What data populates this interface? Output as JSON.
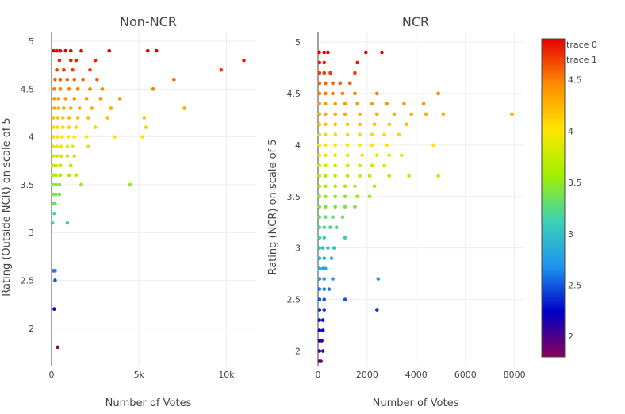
{
  "chart_data": [
    {
      "type": "scatter",
      "title": "Non-NCR",
      "xlabel": "Number of Votes",
      "ylabel": "Rating (Outside NCR) on scale of 5",
      "xlim": [
        0,
        11700
      ],
      "ylim": [
        1.6,
        5.1
      ],
      "xticks": [
        0,
        5000,
        10000
      ],
      "xtick_labels": [
        "0",
        "5k",
        "10k"
      ],
      "yticks": [
        2,
        2.5,
        3,
        3.5,
        4,
        4.5,
        5
      ],
      "ytick_labels": [
        "2",
        "2.5",
        "3",
        "3.5",
        "4",
        "4.5",
        "5"
      ],
      "grid": true,
      "points": [
        {
          "x": 120,
          "y": 4.9
        },
        {
          "x": 300,
          "y": 4.9
        },
        {
          "x": 500,
          "y": 4.9
        },
        {
          "x": 800,
          "y": 4.9
        },
        {
          "x": 1100,
          "y": 4.9
        },
        {
          "x": 1700,
          "y": 4.9
        },
        {
          "x": 3300,
          "y": 4.9
        },
        {
          "x": 5500,
          "y": 4.9
        },
        {
          "x": 6000,
          "y": 4.9
        },
        {
          "x": 450,
          "y": 4.8
        },
        {
          "x": 1100,
          "y": 4.8
        },
        {
          "x": 1400,
          "y": 4.8
        },
        {
          "x": 2500,
          "y": 4.8
        },
        {
          "x": 11000,
          "y": 4.8
        },
        {
          "x": 300,
          "y": 4.7
        },
        {
          "x": 700,
          "y": 4.7
        },
        {
          "x": 1200,
          "y": 4.7
        },
        {
          "x": 2200,
          "y": 4.7
        },
        {
          "x": 9700,
          "y": 4.7
        },
        {
          "x": 200,
          "y": 4.6
        },
        {
          "x": 500,
          "y": 4.6
        },
        {
          "x": 900,
          "y": 4.6
        },
        {
          "x": 1300,
          "y": 4.6
        },
        {
          "x": 1800,
          "y": 4.6
        },
        {
          "x": 2600,
          "y": 4.6
        },
        {
          "x": 7000,
          "y": 4.6
        },
        {
          "x": 150,
          "y": 4.5
        },
        {
          "x": 500,
          "y": 4.5
        },
        {
          "x": 1000,
          "y": 4.5
        },
        {
          "x": 1500,
          "y": 4.5
        },
        {
          "x": 2200,
          "y": 4.5
        },
        {
          "x": 2900,
          "y": 4.5
        },
        {
          "x": 5800,
          "y": 4.5
        },
        {
          "x": 150,
          "y": 4.4
        },
        {
          "x": 400,
          "y": 4.4
        },
        {
          "x": 800,
          "y": 4.4
        },
        {
          "x": 1300,
          "y": 4.4
        },
        {
          "x": 2000,
          "y": 4.4
        },
        {
          "x": 2800,
          "y": 4.4
        },
        {
          "x": 3900,
          "y": 4.4
        },
        {
          "x": 150,
          "y": 4.3
        },
        {
          "x": 400,
          "y": 4.3
        },
        {
          "x": 700,
          "y": 4.3
        },
        {
          "x": 1100,
          "y": 4.3
        },
        {
          "x": 1600,
          "y": 4.3
        },
        {
          "x": 2300,
          "y": 4.3
        },
        {
          "x": 3400,
          "y": 4.3
        },
        {
          "x": 7600,
          "y": 4.3
        },
        {
          "x": 100,
          "y": 4.2
        },
        {
          "x": 350,
          "y": 4.2
        },
        {
          "x": 650,
          "y": 4.2
        },
        {
          "x": 1000,
          "y": 4.2
        },
        {
          "x": 1500,
          "y": 4.2
        },
        {
          "x": 2100,
          "y": 4.2
        },
        {
          "x": 3200,
          "y": 4.2
        },
        {
          "x": 5300,
          "y": 4.2
        },
        {
          "x": 100,
          "y": 4.1
        },
        {
          "x": 350,
          "y": 4.1
        },
        {
          "x": 650,
          "y": 4.1
        },
        {
          "x": 1000,
          "y": 4.1
        },
        {
          "x": 1400,
          "y": 4.1
        },
        {
          "x": 2500,
          "y": 4.1
        },
        {
          "x": 5400,
          "y": 4.1
        },
        {
          "x": 100,
          "y": 4.0
        },
        {
          "x": 350,
          "y": 4.0
        },
        {
          "x": 600,
          "y": 4.0
        },
        {
          "x": 950,
          "y": 4.0
        },
        {
          "x": 1300,
          "y": 4.0
        },
        {
          "x": 2000,
          "y": 4.0
        },
        {
          "x": 3600,
          "y": 4.0
        },
        {
          "x": 5200,
          "y": 4.0
        },
        {
          "x": 100,
          "y": 3.9
        },
        {
          "x": 300,
          "y": 3.9
        },
        {
          "x": 550,
          "y": 3.9
        },
        {
          "x": 900,
          "y": 3.9
        },
        {
          "x": 1200,
          "y": 3.9
        },
        {
          "x": 2100,
          "y": 3.9
        },
        {
          "x": 100,
          "y": 3.8
        },
        {
          "x": 300,
          "y": 3.8
        },
        {
          "x": 550,
          "y": 3.8
        },
        {
          "x": 900,
          "y": 3.8
        },
        {
          "x": 1300,
          "y": 3.8
        },
        {
          "x": 80,
          "y": 3.7
        },
        {
          "x": 250,
          "y": 3.7
        },
        {
          "x": 500,
          "y": 3.7
        },
        {
          "x": 1100,
          "y": 3.7
        },
        {
          "x": 80,
          "y": 3.6
        },
        {
          "x": 250,
          "y": 3.6
        },
        {
          "x": 500,
          "y": 3.6
        },
        {
          "x": 1000,
          "y": 3.6
        },
        {
          "x": 1400,
          "y": 3.6
        },
        {
          "x": 80,
          "y": 3.5
        },
        {
          "x": 250,
          "y": 3.5
        },
        {
          "x": 450,
          "y": 3.5
        },
        {
          "x": 1700,
          "y": 3.5
        },
        {
          "x": 4500,
          "y": 3.5
        },
        {
          "x": 80,
          "y": 3.4
        },
        {
          "x": 250,
          "y": 3.4
        },
        {
          "x": 450,
          "y": 3.4
        },
        {
          "x": 100,
          "y": 3.3
        },
        {
          "x": 200,
          "y": 3.3
        },
        {
          "x": 150,
          "y": 3.2
        },
        {
          "x": 50,
          "y": 3.1
        },
        {
          "x": 900,
          "y": 3.1
        },
        {
          "x": 100,
          "y": 2.6
        },
        {
          "x": 200,
          "y": 2.6
        },
        {
          "x": 200,
          "y": 2.5
        },
        {
          "x": 150,
          "y": 2.2
        },
        {
          "x": 350,
          "y": 1.8
        }
      ]
    },
    {
      "type": "scatter",
      "title": "NCR",
      "xlabel": "Number of Votes",
      "ylabel": "Rating (NCR) on scale of 5",
      "xlim": [
        0,
        8400
      ],
      "ylim": [
        1.85,
        5.1
      ],
      "xticks": [
        0,
        2000,
        4000,
        6000,
        8000
      ],
      "xtick_labels": [
        "0",
        "2000",
        "4000",
        "6000",
        "8000"
      ],
      "yticks": [
        2,
        2.5,
        3,
        3.5,
        4,
        4.5,
        5
      ],
      "ytick_labels": [
        "2",
        "2.5",
        "3",
        "3.5",
        "4",
        "4.5",
        "5"
      ],
      "grid": true,
      "points": [
        {
          "x": 50,
          "y": 4.9
        },
        {
          "x": 250,
          "y": 4.9
        },
        {
          "x": 400,
          "y": 4.9
        },
        {
          "x": 1950,
          "y": 4.9
        },
        {
          "x": 2600,
          "y": 4.9
        },
        {
          "x": 60,
          "y": 4.8
        },
        {
          "x": 250,
          "y": 4.8
        },
        {
          "x": 1600,
          "y": 4.8
        },
        {
          "x": 60,
          "y": 4.7
        },
        {
          "x": 250,
          "y": 4.7
        },
        {
          "x": 500,
          "y": 4.7
        },
        {
          "x": 1500,
          "y": 4.7
        },
        {
          "x": 60,
          "y": 4.6
        },
        {
          "x": 300,
          "y": 4.6
        },
        {
          "x": 600,
          "y": 4.6
        },
        {
          "x": 900,
          "y": 4.6
        },
        {
          "x": 1300,
          "y": 4.6
        },
        {
          "x": 60,
          "y": 4.5
        },
        {
          "x": 300,
          "y": 4.5
        },
        {
          "x": 600,
          "y": 4.5
        },
        {
          "x": 1000,
          "y": 4.5
        },
        {
          "x": 1500,
          "y": 4.5
        },
        {
          "x": 2400,
          "y": 4.5
        },
        {
          "x": 4900,
          "y": 4.5
        },
        {
          "x": 60,
          "y": 4.4
        },
        {
          "x": 300,
          "y": 4.4
        },
        {
          "x": 700,
          "y": 4.4
        },
        {
          "x": 1100,
          "y": 4.4
        },
        {
          "x": 1600,
          "y": 4.4
        },
        {
          "x": 2200,
          "y": 4.4
        },
        {
          "x": 2800,
          "y": 4.4
        },
        {
          "x": 3500,
          "y": 4.4
        },
        {
          "x": 4300,
          "y": 4.4
        },
        {
          "x": 60,
          "y": 4.3
        },
        {
          "x": 300,
          "y": 4.3
        },
        {
          "x": 700,
          "y": 4.3
        },
        {
          "x": 1100,
          "y": 4.3
        },
        {
          "x": 1700,
          "y": 4.3
        },
        {
          "x": 2400,
          "y": 4.3
        },
        {
          "x": 3100,
          "y": 4.3
        },
        {
          "x": 3800,
          "y": 4.3
        },
        {
          "x": 4400,
          "y": 4.3
        },
        {
          "x": 5100,
          "y": 4.3
        },
        {
          "x": 7900,
          "y": 4.3
        },
        {
          "x": 60,
          "y": 4.2
        },
        {
          "x": 300,
          "y": 4.2
        },
        {
          "x": 700,
          "y": 4.2
        },
        {
          "x": 1200,
          "y": 4.2
        },
        {
          "x": 1700,
          "y": 4.2
        },
        {
          "x": 2300,
          "y": 4.2
        },
        {
          "x": 2900,
          "y": 4.2
        },
        {
          "x": 3600,
          "y": 4.2
        },
        {
          "x": 60,
          "y": 4.1
        },
        {
          "x": 300,
          "y": 4.1
        },
        {
          "x": 700,
          "y": 4.1
        },
        {
          "x": 1200,
          "y": 4.1
        },
        {
          "x": 1700,
          "y": 4.1
        },
        {
          "x": 2200,
          "y": 4.1
        },
        {
          "x": 2700,
          "y": 4.1
        },
        {
          "x": 3300,
          "y": 4.1
        },
        {
          "x": 60,
          "y": 4.0
        },
        {
          "x": 300,
          "y": 4.0
        },
        {
          "x": 700,
          "y": 4.0
        },
        {
          "x": 1200,
          "y": 4.0
        },
        {
          "x": 1700,
          "y": 4.0
        },
        {
          "x": 2200,
          "y": 4.0
        },
        {
          "x": 2800,
          "y": 4.0
        },
        {
          "x": 4700,
          "y": 4.0
        },
        {
          "x": 60,
          "y": 3.9
        },
        {
          "x": 300,
          "y": 3.9
        },
        {
          "x": 700,
          "y": 3.9
        },
        {
          "x": 1200,
          "y": 3.9
        },
        {
          "x": 1800,
          "y": 3.9
        },
        {
          "x": 2400,
          "y": 3.9
        },
        {
          "x": 2900,
          "y": 3.9
        },
        {
          "x": 3400,
          "y": 3.9
        },
        {
          "x": 60,
          "y": 3.8
        },
        {
          "x": 300,
          "y": 3.8
        },
        {
          "x": 700,
          "y": 3.8
        },
        {
          "x": 1200,
          "y": 3.8
        },
        {
          "x": 1700,
          "y": 3.8
        },
        {
          "x": 2200,
          "y": 3.8
        },
        {
          "x": 2700,
          "y": 3.8
        },
        {
          "x": 60,
          "y": 3.7
        },
        {
          "x": 300,
          "y": 3.7
        },
        {
          "x": 700,
          "y": 3.7
        },
        {
          "x": 1200,
          "y": 3.7
        },
        {
          "x": 1700,
          "y": 3.7
        },
        {
          "x": 2100,
          "y": 3.7
        },
        {
          "x": 2900,
          "y": 3.7
        },
        {
          "x": 3700,
          "y": 3.7
        },
        {
          "x": 4900,
          "y": 3.7
        },
        {
          "x": 60,
          "y": 3.6
        },
        {
          "x": 300,
          "y": 3.6
        },
        {
          "x": 700,
          "y": 3.6
        },
        {
          "x": 1100,
          "y": 3.6
        },
        {
          "x": 1500,
          "y": 3.6
        },
        {
          "x": 2300,
          "y": 3.6
        },
        {
          "x": 60,
          "y": 3.5
        },
        {
          "x": 300,
          "y": 3.5
        },
        {
          "x": 700,
          "y": 3.5
        },
        {
          "x": 1100,
          "y": 3.5
        },
        {
          "x": 1600,
          "y": 3.5
        },
        {
          "x": 2100,
          "y": 3.5
        },
        {
          "x": 60,
          "y": 3.4
        },
        {
          "x": 300,
          "y": 3.4
        },
        {
          "x": 700,
          "y": 3.4
        },
        {
          "x": 1100,
          "y": 3.4
        },
        {
          "x": 1500,
          "y": 3.4
        },
        {
          "x": 60,
          "y": 3.3
        },
        {
          "x": 300,
          "y": 3.3
        },
        {
          "x": 600,
          "y": 3.3
        },
        {
          "x": 1000,
          "y": 3.3
        },
        {
          "x": 60,
          "y": 3.2
        },
        {
          "x": 250,
          "y": 3.2
        },
        {
          "x": 500,
          "y": 3.2
        },
        {
          "x": 750,
          "y": 3.2
        },
        {
          "x": 60,
          "y": 3.1
        },
        {
          "x": 250,
          "y": 3.1
        },
        {
          "x": 1100,
          "y": 3.1
        },
        {
          "x": 60,
          "y": 3.0
        },
        {
          "x": 200,
          "y": 3.0
        },
        {
          "x": 400,
          "y": 3.0
        },
        {
          "x": 650,
          "y": 3.0
        },
        {
          "x": 60,
          "y": 2.9
        },
        {
          "x": 250,
          "y": 2.9
        },
        {
          "x": 550,
          "y": 2.9
        },
        {
          "x": 60,
          "y": 2.8
        },
        {
          "x": 200,
          "y": 2.8
        },
        {
          "x": 300,
          "y": 2.8
        },
        {
          "x": 60,
          "y": 2.7
        },
        {
          "x": 250,
          "y": 2.7
        },
        {
          "x": 600,
          "y": 2.7
        },
        {
          "x": 2450,
          "y": 2.7
        },
        {
          "x": 60,
          "y": 2.6
        },
        {
          "x": 250,
          "y": 2.6
        },
        {
          "x": 450,
          "y": 2.6
        },
        {
          "x": 60,
          "y": 2.5
        },
        {
          "x": 250,
          "y": 2.5
        },
        {
          "x": 1100,
          "y": 2.5
        },
        {
          "x": 60,
          "y": 2.4
        },
        {
          "x": 250,
          "y": 2.4
        },
        {
          "x": 2400,
          "y": 2.4
        },
        {
          "x": 60,
          "y": 2.3
        },
        {
          "x": 200,
          "y": 2.3
        },
        {
          "x": 60,
          "y": 2.2
        },
        {
          "x": 200,
          "y": 2.2
        },
        {
          "x": 60,
          "y": 2.1
        },
        {
          "x": 150,
          "y": 2.1
        },
        {
          "x": 60,
          "y": 2.0
        },
        {
          "x": 200,
          "y": 2.0
        },
        {
          "x": 60,
          "y": 1.9
        },
        {
          "x": 120,
          "y": 1.9
        }
      ]
    }
  ],
  "legend": {
    "placement": "top-right",
    "entries": [
      "trace 0",
      "trace 1"
    ]
  },
  "colorbar": {
    "colorscale": "jet",
    "range": [
      1.8,
      4.9
    ],
    "ticks": [
      2,
      2.5,
      3,
      3.5,
      4,
      4.5
    ],
    "tick_labels": [
      "2",
      "2.5",
      "3",
      "3.5",
      "4",
      "4.5"
    ],
    "colors": [
      "#8b005a",
      "#0000c8",
      "#1e96f0",
      "#3cd2b4",
      "#a0f000",
      "#ffe600",
      "#ff8c00",
      "#e60000"
    ]
  }
}
